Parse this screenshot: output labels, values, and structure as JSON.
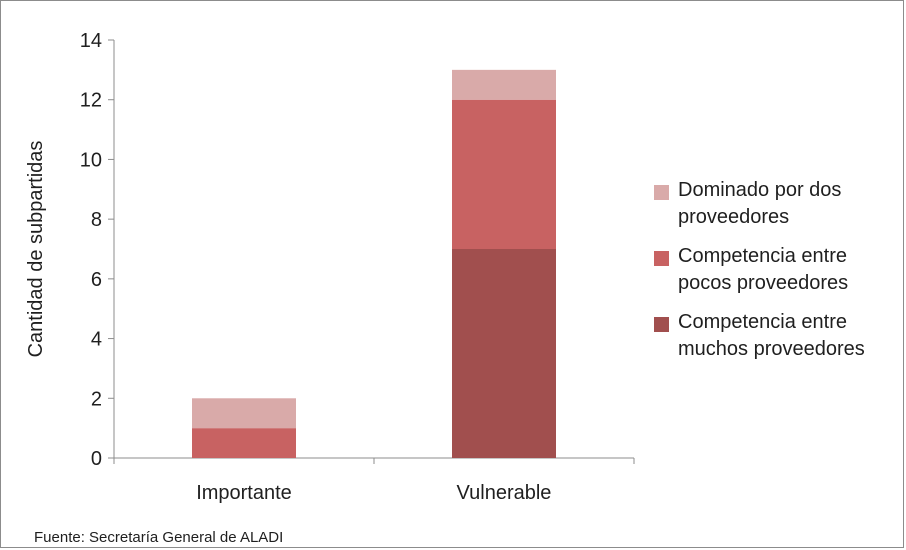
{
  "chart_data": {
    "type": "bar",
    "stacked": true,
    "categories": [
      "Importante",
      "Vulnerable"
    ],
    "series": [
      {
        "name": "Competencia entre muchos proveedores",
        "values": [
          0,
          7
        ],
        "color": "#a14f4e"
      },
      {
        "name": "Competencia entre pocos proveedores",
        "values": [
          1,
          5
        ],
        "color": "#c86262"
      },
      {
        "name": "Dominado por dos proveedores",
        "values": [
          1,
          1
        ],
        "color": "#d9aaa9"
      }
    ],
    "title": "",
    "xlabel": "",
    "ylabel": "Cantidad de subpartidas",
    "ylim": [
      0,
      14
    ],
    "yticks": [
      0,
      2,
      4,
      6,
      8,
      10,
      12,
      14
    ],
    "grid": false,
    "legend": {
      "position": "right",
      "entries": [
        {
          "label_lines": [
            "Dominado por dos",
            "proveedores"
          ],
          "color": "#d9aaa9"
        },
        {
          "label_lines": [
            "Competencia entre",
            "pocos proveedores"
          ],
          "color": "#c86262"
        },
        {
          "label_lines": [
            "Competencia entre",
            "muchos proveedores"
          ],
          "color": "#a14f4e"
        }
      ]
    }
  },
  "source_note": "Fuente: Secretaría General de ALADI"
}
